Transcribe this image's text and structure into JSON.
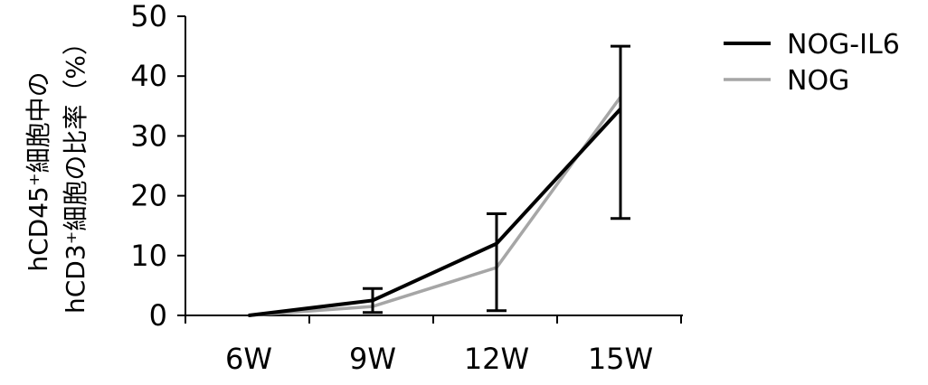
{
  "chart_data": {
    "type": "line",
    "title": "",
    "xlabel": "",
    "ylabel_lines": [
      "hCD45⁺細胞中の",
      "hCD3⁺細胞の比率（%）"
    ],
    "categories": [
      "6W",
      "9W",
      "12W",
      "15W"
    ],
    "ylim": [
      0,
      50
    ],
    "yticks": [
      0,
      10,
      20,
      30,
      40,
      50
    ],
    "grid": false,
    "legend_position": "top-right",
    "series": [
      {
        "name": "NOG-IL6",
        "color": "#000000",
        "values": [
          0,
          2.5,
          12,
          34.5
        ],
        "error_upper": [
          0,
          4.5,
          17,
          45
        ],
        "error_lower": [
          0,
          0.5,
          0.8,
          16.2
        ]
      },
      {
        "name": "NOG",
        "color": "#a6a6a6",
        "values": [
          0,
          1.5,
          8,
          36.5
        ]
      }
    ]
  }
}
